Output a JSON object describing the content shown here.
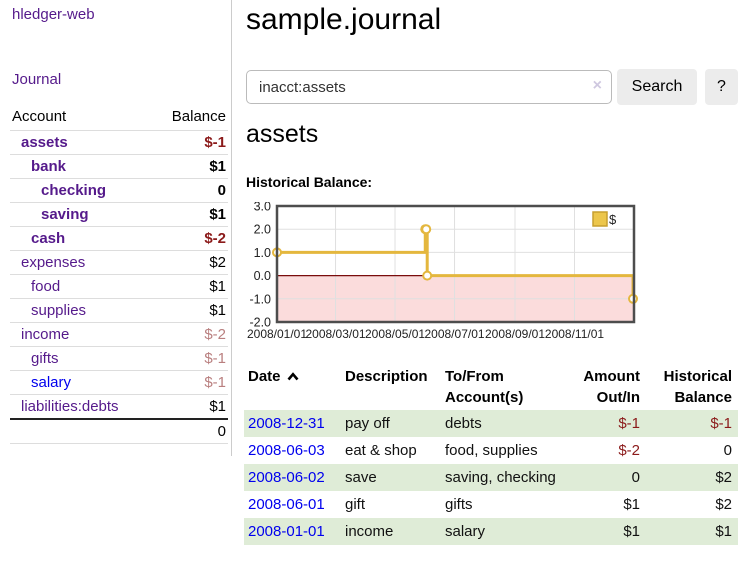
{
  "colors": {
    "link_purple": "#551a8b",
    "link_blue": "#0000ee",
    "negative_strong": "#8b1a1a",
    "negative_soft": "#b97f7f",
    "row_stripe_green": "#dfecd7",
    "chart_line_gold": "#e4b73e",
    "chart_negative_fill_pink": "#fbdcdc",
    "chart_zero_line_red": "#7a0c0c",
    "button_gray": "#ececec"
  },
  "sidebar": {
    "app_title": "hledger-web",
    "nav_journal": "Journal",
    "accounts_table": {
      "headers": [
        "Account",
        "Balance"
      ],
      "rows": [
        {
          "account": "assets",
          "depth": 1,
          "bold": true,
          "balance": "$-1",
          "negative": "strong"
        },
        {
          "account": "bank",
          "depth": 2,
          "bold": true,
          "balance": "$1",
          "negative": "none"
        },
        {
          "account": "checking",
          "depth": 3,
          "bold": true,
          "balance": "0",
          "negative": "none"
        },
        {
          "account": "saving",
          "depth": 3,
          "bold": true,
          "balance": "$1",
          "negative": "none"
        },
        {
          "account": "cash",
          "depth": 2,
          "bold": true,
          "balance": "$-2",
          "negative": "strong"
        },
        {
          "account": "expenses",
          "depth": 1,
          "bold": false,
          "balance": "$2",
          "negative": "none"
        },
        {
          "account": "food",
          "depth": 2,
          "bold": false,
          "balance": "$1",
          "negative": "none"
        },
        {
          "account": "supplies",
          "depth": 2,
          "bold": false,
          "balance": "$1",
          "negative": "none"
        },
        {
          "account": "income",
          "depth": 1,
          "bold": false,
          "balance": "$-2",
          "negative": "soft"
        },
        {
          "account": "gifts",
          "depth": 2,
          "bold": false,
          "balance": "$-1",
          "negative": "soft"
        },
        {
          "account": "salary",
          "depth": 2,
          "bold": false,
          "balance": "$-1",
          "negative": "soft",
          "link_color": "blue"
        },
        {
          "account": "liabilities:debts",
          "depth": 1,
          "bold": false,
          "balance": "$1",
          "negative": "none"
        }
      ],
      "total": "0"
    }
  },
  "main": {
    "title": "sample.journal",
    "search": {
      "value": "inacct:assets",
      "clear_icon": "×",
      "search_button": "Search",
      "help_button": "?"
    },
    "account_heading": "assets",
    "section_label": "Historical Balance:",
    "transactions": {
      "headers": {
        "date": "Date",
        "description": "Description",
        "accounts": "To/From Account(s)",
        "amount": "Amount Out/In",
        "balance": "Historical Balance"
      },
      "rows": [
        {
          "date": "2008-12-31",
          "description": "pay off",
          "accounts": "debts",
          "amount": "$-1",
          "amount_negative": true,
          "balance": "$-1",
          "balance_negative": true
        },
        {
          "date": "2008-06-03",
          "description": "eat & shop",
          "accounts": "food, supplies",
          "amount": "$-2",
          "amount_negative": true,
          "balance": "0",
          "balance_negative": false
        },
        {
          "date": "2008-06-02",
          "description": "save",
          "accounts": "saving, checking",
          "amount": "0",
          "amount_negative": false,
          "balance": "$2",
          "balance_negative": false
        },
        {
          "date": "2008-06-01",
          "description": "gift",
          "accounts": "gifts",
          "amount": "$1",
          "amount_negative": false,
          "balance": "$2",
          "balance_negative": false
        },
        {
          "date": "2008-01-01",
          "description": "income",
          "accounts": "salary",
          "amount": "$1",
          "amount_negative": false,
          "balance": "$1",
          "balance_negative": false
        }
      ]
    }
  },
  "chart_data": {
    "type": "line",
    "title": "Historical Balance:",
    "step": true,
    "series": [
      {
        "name": "$",
        "points": [
          [
            "2008-01-01",
            1
          ],
          [
            "2008-06-01",
            2
          ],
          [
            "2008-06-02",
            2
          ],
          [
            "2008-06-03",
            0
          ],
          [
            "2008-12-31",
            -1
          ]
        ]
      }
    ],
    "x_range": [
      "2008-01-01",
      "2009-01-01"
    ],
    "ylim": [
      -2,
      3
    ],
    "yticks": [
      "3.0",
      "2.0",
      "1.0",
      "0.0",
      "-1.0",
      "-2.0"
    ],
    "xtick_dates": [
      "2008-01-01",
      "2008-03-01",
      "2008-05-01",
      "2008-07-01",
      "2008-09-01",
      "2008-11-01"
    ],
    "xtick_labels": [
      "2008/01/01",
      "2008/03/01",
      "2008/05/01",
      "2008/07/01",
      "2008/09/01",
      "2008/11/01"
    ],
    "legend": {
      "label": "$",
      "position": "top-right"
    },
    "grid": true,
    "negative_region_shaded": true
  }
}
